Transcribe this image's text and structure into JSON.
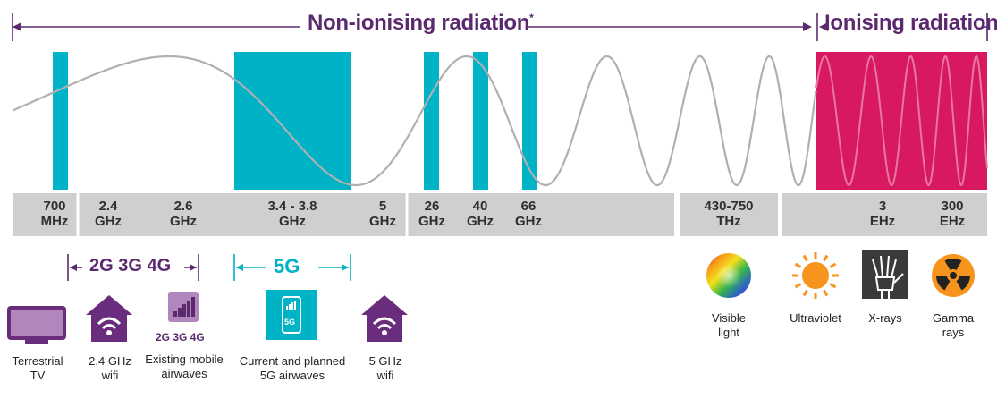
{
  "header": {
    "non_ionising": "Non-ionising radiation",
    "ionising": "Ionising radiation",
    "asterisk": "*"
  },
  "frequencies": [
    {
      "line1": "700",
      "line2": "MHz"
    },
    {
      "line1": "2.4",
      "line2": "GHz"
    },
    {
      "line1": "2.6",
      "line2": "GHz"
    },
    {
      "line1": "3.4 - 3.8",
      "line2": "GHz"
    },
    {
      "line1": "5",
      "line2": "GHz"
    },
    {
      "line1": "26",
      "line2": "GHz"
    },
    {
      "line1": "40",
      "line2": "GHz"
    },
    {
      "line1": "66",
      "line2": "GHz"
    },
    {
      "line1": "430-750",
      "line2": "THz"
    },
    {
      "line1": "3",
      "line2": "EHz"
    },
    {
      "line1": "300",
      "line2": "EHz"
    }
  ],
  "bands": {
    "legacy": "2G 3G 4G",
    "fiveg": "5G"
  },
  "captions": {
    "terrestrial_tv": [
      "Terrestrial",
      "TV"
    ],
    "wifi_24": [
      "2.4 GHz",
      "wifi"
    ],
    "mobile": [
      "Existing mobile",
      "airwaves"
    ],
    "mobile_icon_text": "2G  3G  4G",
    "fiveg": [
      "Current and planned",
      "5G airwaves"
    ],
    "fiveg_icon_text": "5G",
    "wifi_5": [
      "5 GHz",
      "wifi"
    ],
    "visible": [
      "Visible",
      "light"
    ],
    "ultraviolet": [
      "Ultraviolet"
    ],
    "xrays": [
      "X-rays"
    ],
    "gamma": [
      "Gamma",
      "rays"
    ]
  },
  "colors": {
    "purple": "#5b2a6e",
    "teal": "#00b2c6",
    "magenta": "#d81860",
    "bar_gray": "#cfcfcf",
    "wave_gray": "#b0b0b0",
    "icon_purple": "#6a2c7c",
    "icon_lilac": "#b086bd"
  },
  "icons": {
    "tv": "tv-icon",
    "house_wifi": "house-wifi-icon",
    "signal_bars": "signal-bars-icon",
    "phone_5g": "phone-5g-icon",
    "rainbow": "rainbow-icon",
    "sun": "sun-icon",
    "xray": "xray-hand-icon",
    "radiation": "radiation-icon"
  }
}
